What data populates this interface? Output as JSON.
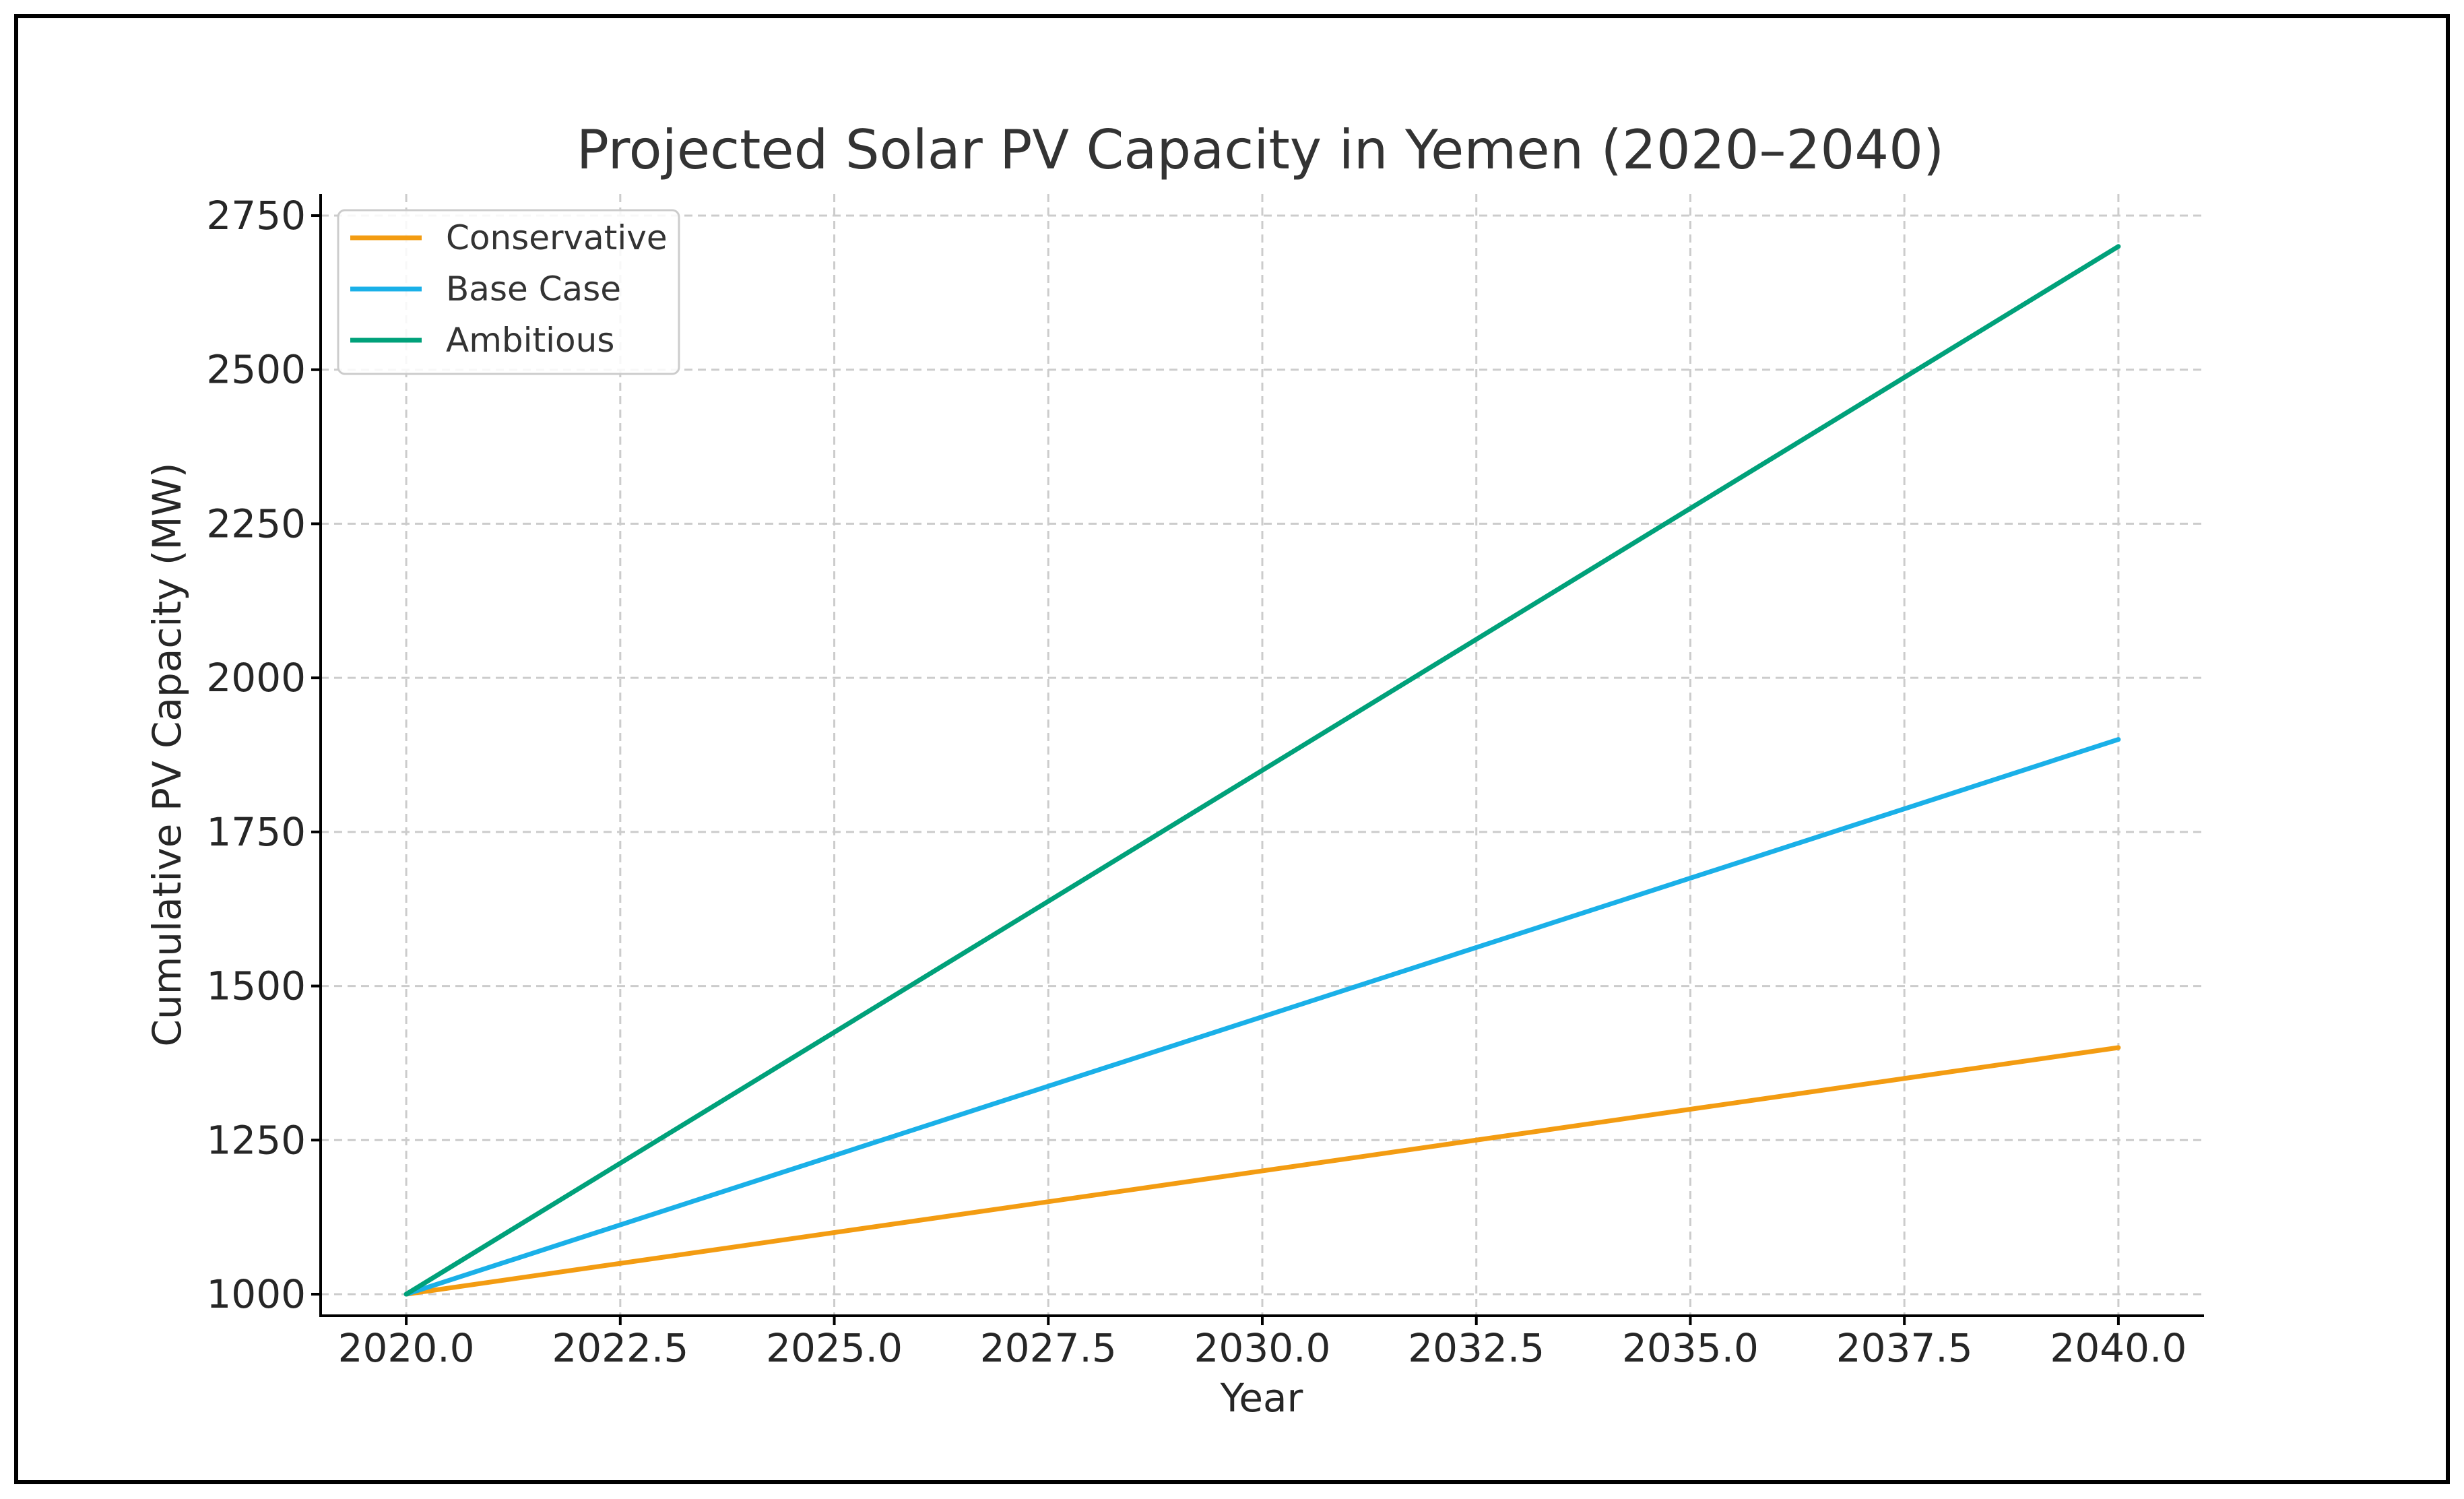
{
  "chart_data": {
    "type": "line",
    "title": "Projected Solar PV Capacity in Yemen (2020–2040)",
    "xlabel": "Year",
    "ylabel": "Cumulative PV Capacity (MW)",
    "x": [
      2020,
      2040
    ],
    "xlim": [
      2019,
      2041
    ],
    "ylim": [
      965,
      2785
    ],
    "xticks": [
      2020.0,
      2022.5,
      2025.0,
      2027.5,
      2030.0,
      2032.5,
      2035.0,
      2037.5,
      2040.0
    ],
    "xtick_labels": [
      "2020.0",
      "2022.5",
      "2025.0",
      "2027.5",
      "2030.0",
      "2032.5",
      "2035.0",
      "2037.5",
      "2040.0"
    ],
    "yticks": [
      1000,
      1250,
      1500,
      1750,
      2000,
      2250,
      2500,
      2750
    ],
    "ytick_labels": [
      "1000",
      "1250",
      "1500",
      "1750",
      "2000",
      "2250",
      "2500",
      "2750"
    ],
    "grid": true,
    "legend_position": "top-left",
    "series": [
      {
        "name": "Conservative",
        "color": "#f39c12",
        "values": [
          1000,
          1400
        ]
      },
      {
        "name": "Base Case",
        "color": "#1ab0e8",
        "values": [
          1000,
          1900
        ]
      },
      {
        "name": "Ambitious",
        "color": "#00a17a",
        "values": [
          1000,
          2700
        ]
      }
    ]
  }
}
